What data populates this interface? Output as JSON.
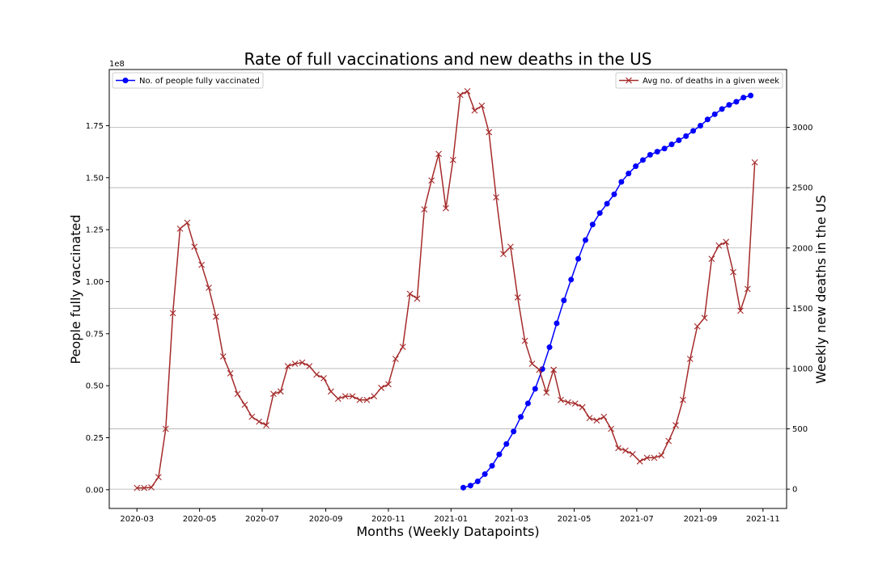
{
  "chart_data": {
    "type": "line",
    "title": "Rate of full vaccinations and new deaths in the US",
    "xlabel": "Months (Weekly Datapoints)",
    "ylabel_left": "People fully vaccinated",
    "ylabel_right": "Weekly new deaths in the US",
    "left_axis_multiplier": "1e8",
    "x_tick_labels": [
      "2020-03",
      "2020-05",
      "2020-07",
      "2020-09",
      "2020-11",
      "2021-01",
      "2021-03",
      "2021-05",
      "2021-07",
      "2021-09",
      "2021-11"
    ],
    "y_left_tick_labels": [
      "0.00",
      "0.25",
      "0.50",
      "0.75",
      "1.00",
      "1.25",
      "1.50",
      "1.75"
    ],
    "y_right_tick_labels": [
      "0",
      "500",
      "1000",
      "1500",
      "2000",
      "2500",
      "3000"
    ],
    "ylim_left": [
      -0.09,
      2.02
    ],
    "ylim_right": [
      -160,
      3480
    ],
    "grid": "horizontal lines at right-axis ticks",
    "legend_left": "top-left",
    "legend_right": "top-right",
    "series": [
      {
        "name": "No. of people fully vaccinated",
        "axis": "left",
        "color": "#0000ff",
        "marker": "circle",
        "unit_scale": "1e8",
        "points": [
          [
            "2021-01-13",
            0.01
          ],
          [
            "2021-01-20",
            0.02
          ],
          [
            "2021-01-27",
            0.04
          ],
          [
            "2021-02-03",
            0.075
          ],
          [
            "2021-02-10",
            0.115
          ],
          [
            "2021-02-17",
            0.17
          ],
          [
            "2021-02-24",
            0.22
          ],
          [
            "2021-03-03",
            0.28
          ],
          [
            "2021-03-10",
            0.35
          ],
          [
            "2021-03-17",
            0.415
          ],
          [
            "2021-03-24",
            0.485
          ],
          [
            "2021-03-31",
            0.58
          ],
          [
            "2021-04-07",
            0.685
          ],
          [
            "2021-04-14",
            0.8
          ],
          [
            "2021-04-21",
            0.91
          ],
          [
            "2021-04-28",
            1.01
          ],
          [
            "2021-05-05",
            1.11
          ],
          [
            "2021-05-12",
            1.2
          ],
          [
            "2021-05-19",
            1.275
          ],
          [
            "2021-05-26",
            1.33
          ],
          [
            "2021-06-02",
            1.375
          ],
          [
            "2021-06-09",
            1.42
          ],
          [
            "2021-06-16",
            1.48
          ],
          [
            "2021-06-23",
            1.52
          ],
          [
            "2021-06-30",
            1.555
          ],
          [
            "2021-07-07",
            1.585
          ],
          [
            "2021-07-14",
            1.61
          ],
          [
            "2021-07-21",
            1.625
          ],
          [
            "2021-07-28",
            1.64
          ],
          [
            "2021-08-04",
            1.66
          ],
          [
            "2021-08-11",
            1.68
          ],
          [
            "2021-08-18",
            1.7
          ],
          [
            "2021-08-25",
            1.725
          ],
          [
            "2021-09-01",
            1.75
          ],
          [
            "2021-09-08",
            1.78
          ],
          [
            "2021-09-15",
            1.805
          ],
          [
            "2021-09-22",
            1.83
          ],
          [
            "2021-09-29",
            1.85
          ],
          [
            "2021-10-06",
            1.865
          ],
          [
            "2021-10-13",
            1.885
          ],
          [
            "2021-10-20",
            1.895
          ]
        ]
      },
      {
        "name": "Avg no. of deaths in a given week",
        "axis": "right",
        "color": "#a52a2a",
        "marker": "x",
        "points": [
          [
            "2020-03-01",
            10
          ],
          [
            "2020-03-08",
            10
          ],
          [
            "2020-03-15",
            15
          ],
          [
            "2020-03-22",
            100
          ],
          [
            "2020-03-29",
            500
          ],
          [
            "2020-04-05",
            1460
          ],
          [
            "2020-04-12",
            2160
          ],
          [
            "2020-04-19",
            2210
          ],
          [
            "2020-04-26",
            2010
          ],
          [
            "2020-05-03",
            1860
          ],
          [
            "2020-05-10",
            1670
          ],
          [
            "2020-05-17",
            1430
          ],
          [
            "2020-05-24",
            1100
          ],
          [
            "2020-05-31",
            960
          ],
          [
            "2020-06-07",
            790
          ],
          [
            "2020-06-14",
            700
          ],
          [
            "2020-06-21",
            600
          ],
          [
            "2020-06-28",
            560
          ],
          [
            "2020-07-05",
            530
          ],
          [
            "2020-07-12",
            790
          ],
          [
            "2020-07-19",
            810
          ],
          [
            "2020-07-26",
            1020
          ],
          [
            "2020-08-02",
            1040
          ],
          [
            "2020-08-09",
            1050
          ],
          [
            "2020-08-16",
            1020
          ],
          [
            "2020-08-23",
            950
          ],
          [
            "2020-08-30",
            920
          ],
          [
            "2020-09-06",
            810
          ],
          [
            "2020-09-13",
            750
          ],
          [
            "2020-09-20",
            770
          ],
          [
            "2020-09-27",
            770
          ],
          [
            "2020-10-04",
            740
          ],
          [
            "2020-10-11",
            740
          ],
          [
            "2020-10-18",
            770
          ],
          [
            "2020-10-25",
            840
          ],
          [
            "2020-11-01",
            870
          ],
          [
            "2020-11-08",
            1080
          ],
          [
            "2020-11-15",
            1180
          ],
          [
            "2020-11-22",
            1620
          ],
          [
            "2020-11-29",
            1580
          ],
          [
            "2020-12-06",
            2320
          ],
          [
            "2020-12-13",
            2560
          ],
          [
            "2020-12-20",
            2780
          ],
          [
            "2020-12-27",
            2330
          ],
          [
            "2021-01-03",
            2730
          ],
          [
            "2021-01-10",
            3270
          ],
          [
            "2021-01-17",
            3300
          ],
          [
            "2021-01-24",
            3140
          ],
          [
            "2021-01-31",
            3180
          ],
          [
            "2021-02-07",
            2960
          ],
          [
            "2021-02-14",
            2420
          ],
          [
            "2021-02-21",
            1950
          ],
          [
            "2021-02-28",
            2010
          ],
          [
            "2021-03-07",
            1590
          ],
          [
            "2021-03-14",
            1230
          ],
          [
            "2021-03-21",
            1040
          ],
          [
            "2021-03-28",
            990
          ],
          [
            "2021-04-04",
            800
          ],
          [
            "2021-04-11",
            990
          ],
          [
            "2021-04-18",
            740
          ],
          [
            "2021-04-25",
            720
          ],
          [
            "2021-05-02",
            710
          ],
          [
            "2021-05-09",
            680
          ],
          [
            "2021-05-16",
            590
          ],
          [
            "2021-05-23",
            570
          ],
          [
            "2021-05-30",
            600
          ],
          [
            "2021-06-06",
            500
          ],
          [
            "2021-06-13",
            340
          ],
          [
            "2021-06-20",
            320
          ],
          [
            "2021-06-27",
            290
          ],
          [
            "2021-07-04",
            230
          ],
          [
            "2021-07-11",
            260
          ],
          [
            "2021-07-18",
            260
          ],
          [
            "2021-07-25",
            280
          ],
          [
            "2021-08-01",
            400
          ],
          [
            "2021-08-08",
            530
          ],
          [
            "2021-08-15",
            740
          ],
          [
            "2021-08-22",
            1080
          ],
          [
            "2021-08-29",
            1350
          ],
          [
            "2021-09-05",
            1420
          ],
          [
            "2021-09-12",
            1910
          ],
          [
            "2021-09-19",
            2020
          ],
          [
            "2021-09-26",
            2050
          ],
          [
            "2021-10-03",
            1800
          ],
          [
            "2021-10-10",
            1480
          ],
          [
            "2021-10-17",
            1660
          ],
          [
            "2021-10-24",
            2710
          ]
        ]
      }
    ]
  }
}
